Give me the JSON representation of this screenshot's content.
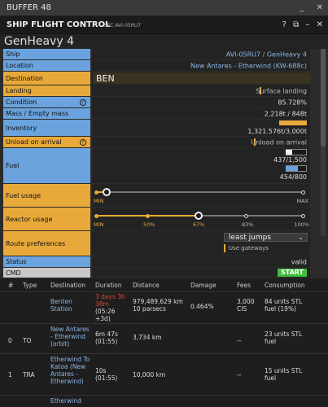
{
  "window": {
    "title": "BUFFER 48",
    "minimize": "_",
    "close": "✕"
  },
  "header": {
    "title": "SHIP FLIGHT CONTROL",
    "subtitle": "SFC AVI-05RU7"
  },
  "ship_name": "GenHeavy 4",
  "rows": {
    "ship": {
      "label": "Ship",
      "value_id": "AVI-05RU7",
      "sep": " / ",
      "value_name": "GenHeavy 4"
    },
    "location": {
      "label": "Location",
      "value": "New Antares - Etherwind (KW-688c)"
    },
    "destination": {
      "label": "Destination",
      "value": "BEN"
    },
    "landing": {
      "label": "Landing",
      "value": "Surface landing"
    },
    "condition": {
      "label": "Condition",
      "value": "85.728%"
    },
    "mass": {
      "label": "Mass / Empty mass",
      "value": "2,218t / 848t"
    },
    "inventory": {
      "label": "Inventory",
      "value": "1,321.576t/3,000t",
      "fill": 0.44
    },
    "unload": {
      "label": "Unload on arrival",
      "value": "Unload on arrival"
    },
    "fuel": {
      "label": "Fuel",
      "value1": "437/1,500",
      "value2": "454/800",
      "fill1": 0.29,
      "fill2": 0.57
    },
    "fuel_usage": {
      "label": "Fuel usage",
      "min": "MIN",
      "max": "MAX"
    },
    "reactor_usage": {
      "label": "Reactor usage",
      "ticks": [
        "MIN",
        "50%",
        "67%",
        "83%",
        "100%"
      ],
      "selected": "67%"
    },
    "route": {
      "label": "Route preferences",
      "value": "least jumps",
      "option": "Use gateways"
    },
    "status": {
      "label": "Status",
      "value": "valid"
    },
    "cmd": {
      "label": "CMD",
      "button": "START"
    }
  },
  "table": {
    "headers": [
      "#",
      "Type",
      "Destination",
      "Duration",
      "Distance",
      "Damage",
      "Fees",
      "Consumption"
    ],
    "rows": [
      {
        "num": "",
        "type": "",
        "dest": "Benten Station",
        "duration_red": "3 days 3h 38m",
        "duration": "(05:26 +3d)",
        "distance": "979,489,629 km 10 parsecs",
        "damage": "0.464%",
        "fees": "3,000 CIS",
        "consumption": "84 units STL fuel (19%)"
      },
      {
        "num": "0",
        "type": "TO",
        "dest": "New Antares - Etherwind (orbit)",
        "duration_red": "",
        "duration": "6m 47s (01:55)",
        "distance": "3,734 km",
        "damage": "",
        "fees": "--",
        "consumption": "23 units STL fuel"
      },
      {
        "num": "1",
        "type": "TRA",
        "dest": "Etherwind To Katoa (New Antares - Etherwind)",
        "duration_red": "",
        "duration": "10s (01:55)",
        "distance": "10,000 km",
        "damage": "",
        "fees": "--",
        "consumption": "15 units STL fuel"
      },
      {
        "num": "",
        "type": "",
        "dest": "Etherwind",
        "duration_red": "",
        "duration": "",
        "distance": "",
        "damage": "",
        "fees": "",
        "consumption": ""
      }
    ]
  },
  "colors": {
    "blue": "#6aa3dd",
    "orange": "#e8a93a",
    "start": "#3fbf3f",
    "red": "#e0473a",
    "link": "#8bb7e6"
  }
}
